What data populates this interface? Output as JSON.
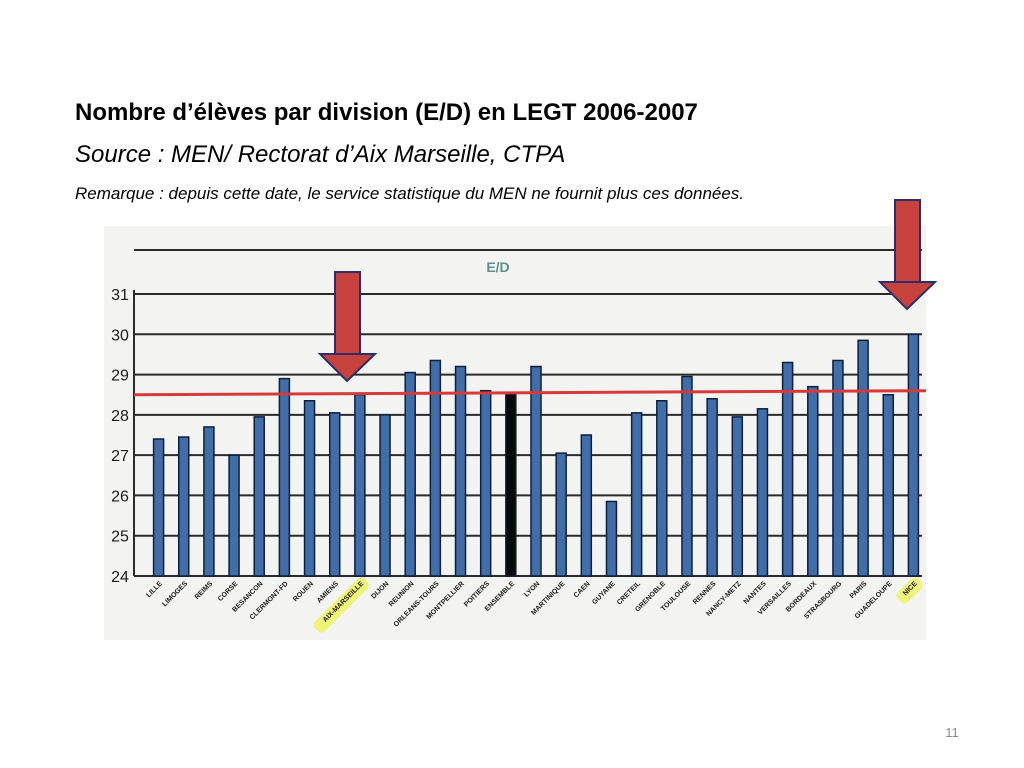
{
  "slide": {
    "title": "Nombre d’élèves par division (E/D) en LEGT 2006-2007",
    "source": "Source : MEN/ Rectorat d’Aix Marseille, CTPA",
    "remark": "Remarque : depuis cette date, le service statistique du MEN ne fournit plus ces données.",
    "page_number": "11"
  },
  "chart_data": {
    "type": "bar",
    "title": "E/D",
    "xlabel": "",
    "ylabel": "",
    "ylim": [
      24,
      31
    ],
    "yticks": [
      "24",
      "25",
      "26",
      "27",
      "28",
      "29",
      "30",
      "31"
    ],
    "grid": true,
    "reference_line": 28.5,
    "categories": [
      "LILLE",
      "LIMOGES",
      "REIMS",
      "CORSE",
      "BESANCON",
      "CLERMONT-FD",
      "ROUEN",
      "AMIENS",
      "AIX-MARSEILLE",
      "DIJON",
      "REUNION",
      "ORLEANS-TOURS",
      "MONTPELLIER",
      "POITIERS",
      "ENSEMBLE",
      "LYON",
      "MARTINIQUE",
      "CAEN",
      "GUYANE",
      "CRETEIL",
      "GRENOBLE",
      "TOULOUSE",
      "RENNES",
      "NANCY-METZ",
      "NANTES",
      "VERSAILLES",
      "BORDEAUX",
      "STRASBOURG",
      "PARIS",
      "GUADELOUPE",
      "NICE"
    ],
    "values": [
      27.4,
      27.45,
      27.7,
      27.0,
      27.95,
      28.9,
      28.35,
      28.05,
      28.5,
      28.0,
      29.05,
      29.35,
      29.2,
      28.6,
      28.55,
      29.2,
      27.05,
      27.5,
      25.85,
      28.05,
      28.35,
      28.95,
      28.4,
      27.95,
      28.15,
      29.3,
      28.7,
      29.35,
      29.85,
      28.5,
      30.0
    ],
    "highlighted": [
      "AIX-MARSEILLE",
      "NICE"
    ],
    "colors": {
      "bar": "#3f6ea8",
      "bar_edge": "#0d1f3c",
      "average_bar": "#0a0a0a",
      "reference_line": "#d63a3a",
      "highlight": "#eef37a",
      "arrow": "#c8423d",
      "gridline": "#2b2b2b",
      "plot_bg": "#f3f4f1"
    }
  }
}
